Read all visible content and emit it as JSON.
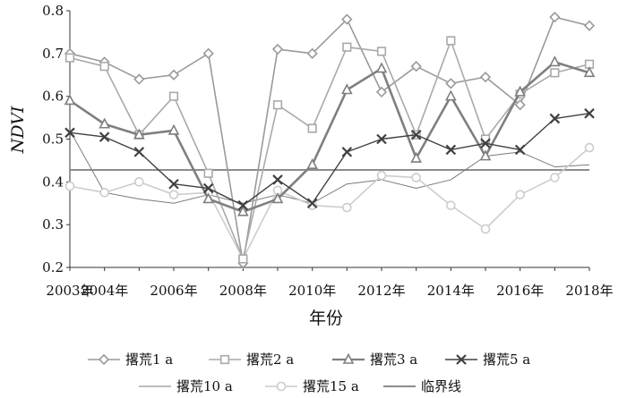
{
  "chart_data": {
    "type": "line",
    "xlabel": "年份",
    "ylabel": "NDVI",
    "ylim": [
      0.2,
      0.8
    ],
    "yticks": [
      "0.2",
      "0.3",
      "0.4",
      "0.5",
      "0.6",
      "0.7",
      "0.8"
    ],
    "x": [
      2003,
      2004,
      2005,
      2006,
      2007,
      2008,
      2009,
      2010,
      2011,
      2012,
      2013,
      2014,
      2015,
      2016,
      2017,
      2018
    ],
    "xtick_labels": [
      "2003年",
      "2004年",
      "2006年",
      "2008年",
      "2010年",
      "2012年",
      "2014年",
      "2016年",
      "2018年"
    ],
    "xtick_years": [
      2003,
      2004,
      2006,
      2008,
      2010,
      2012,
      2014,
      2016,
      2018
    ],
    "legend_position": "bottom",
    "series": [
      {
        "name": "撂荒1 a",
        "color": "#9a9a9a",
        "marker": "diamond",
        "width": 1.6,
        "values": [
          0.7,
          0.68,
          0.64,
          0.65,
          0.7,
          0.21,
          0.71,
          0.7,
          0.78,
          0.61,
          0.67,
          0.63,
          0.645,
          0.58,
          0.785,
          0.765
        ]
      },
      {
        "name": "撂荒2 a",
        "color": "#a9a9a9",
        "marker": "square",
        "width": 1.6,
        "values": [
          0.69,
          0.67,
          0.51,
          0.6,
          0.42,
          0.22,
          0.58,
          0.525,
          0.715,
          0.705,
          0.51,
          0.73,
          0.5,
          0.605,
          0.655,
          0.675
        ]
      },
      {
        "name": "撂荒3 a",
        "color": "#7f7f7f",
        "marker": "triangle",
        "width": 2.6,
        "values": [
          0.59,
          0.535,
          0.51,
          0.52,
          0.36,
          0.33,
          0.36,
          0.44,
          0.615,
          0.665,
          0.455,
          0.6,
          0.46,
          0.61,
          0.68,
          0.655
        ]
      },
      {
        "name": "撂荒5 a",
        "color": "#404040",
        "marker": "x",
        "width": 1.4,
        "values": [
          0.515,
          0.505,
          0.47,
          0.395,
          0.385,
          0.345,
          0.405,
          0.35,
          0.47,
          0.5,
          0.51,
          0.475,
          0.49,
          0.475,
          0.548,
          0.56
        ]
      },
      {
        "name": "撂荒10 a",
        "color": "#7a7a7a",
        "marker": "none",
        "width": 1.0,
        "values": [
          0.52,
          0.375,
          0.36,
          0.35,
          0.37,
          0.35,
          0.37,
          0.35,
          0.395,
          0.405,
          0.385,
          0.405,
          0.46,
          0.47,
          0.435,
          0.44
        ]
      },
      {
        "name": "撂荒15 a",
        "color": "#cccccc",
        "marker": "circle",
        "width": 1.6,
        "values": [
          0.39,
          0.375,
          0.4,
          0.37,
          0.375,
          0.22,
          0.38,
          0.345,
          0.34,
          0.415,
          0.41,
          0.345,
          0.29,
          0.37,
          0.41,
          0.48
        ]
      },
      {
        "name": "临界线",
        "color": "#8c8c8c",
        "marker": "none",
        "width": 2.0,
        "values": [
          0.428,
          0.428,
          0.428,
          0.428,
          0.428,
          0.428,
          0.428,
          0.428,
          0.428,
          0.428,
          0.428,
          0.428,
          0.428,
          0.428,
          0.428,
          0.428
        ]
      }
    ]
  }
}
